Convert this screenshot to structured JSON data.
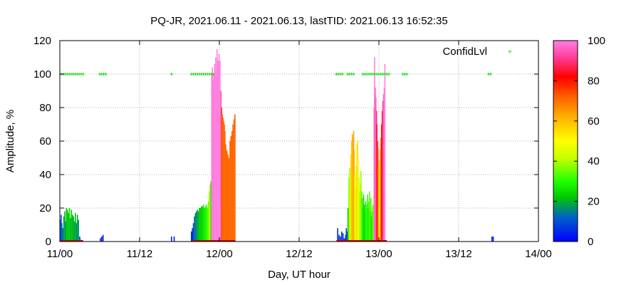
{
  "chart_data": {
    "type": "bar",
    "title": "PQ-JR, 2021.06.11 - 2021.06.13, lastTID: 2021.06.13 16:52:35",
    "xlabel": "Day, UT hour",
    "ylabel": "Amplitude, %",
    "xlim": [
      0,
      72
    ],
    "ylim": [
      0,
      120
    ],
    "x_ticks": [
      {
        "value": 0,
        "label": "11/00"
      },
      {
        "value": 12,
        "label": "11/12"
      },
      {
        "value": 24,
        "label": "12/00"
      },
      {
        "value": 36,
        "label": "12/12"
      },
      {
        "value": 48,
        "label": "13/00"
      },
      {
        "value": 60,
        "label": "13/12"
      },
      {
        "value": 72,
        "label": "14/00"
      }
    ],
    "y_ticks": [
      0,
      20,
      40,
      60,
      80,
      100,
      120
    ],
    "grid": true,
    "legend": {
      "label": "ConfidLvl",
      "placement": "top-right",
      "color": "#00dd00"
    },
    "colorbar": {
      "min": 0,
      "max": 100,
      "ticks": [
        0,
        20,
        40,
        60,
        80,
        100
      ]
    },
    "bar_series": {
      "name": "Amplitude",
      "bars": [
        [
          0.1,
          13,
          15
        ],
        [
          0.2,
          16,
          10
        ],
        [
          0.3,
          11,
          12
        ],
        [
          0.45,
          8,
          14
        ],
        [
          0.6,
          15,
          18
        ],
        [
          0.75,
          18,
          20
        ],
        [
          0.85,
          12,
          16
        ],
        [
          1.0,
          20,
          22
        ],
        [
          1.15,
          19,
          24
        ],
        [
          1.3,
          17,
          20
        ],
        [
          1.45,
          20,
          25
        ],
        [
          1.6,
          14,
          18
        ],
        [
          1.75,
          19,
          23
        ],
        [
          1.9,
          16,
          22
        ],
        [
          2.05,
          15,
          19
        ],
        [
          2.2,
          12,
          17
        ],
        [
          2.35,
          17,
          21
        ],
        [
          2.5,
          11,
          15
        ],
        [
          2.65,
          16,
          20
        ],
        [
          2.8,
          13,
          17
        ],
        [
          3.0,
          3,
          6
        ],
        [
          3.2,
          1,
          3
        ],
        [
          6.1,
          2,
          5
        ],
        [
          6.3,
          3,
          4
        ],
        [
          6.5,
          4,
          3
        ],
        [
          16.8,
          3,
          4
        ],
        [
          17.2,
          3,
          3
        ],
        [
          19.8,
          6,
          5
        ],
        [
          19.95,
          8,
          6
        ],
        [
          20.1,
          11,
          10
        ],
        [
          20.25,
          15,
          12
        ],
        [
          20.4,
          17,
          15
        ],
        [
          20.55,
          18,
          17
        ],
        [
          20.7,
          19,
          19
        ],
        [
          20.85,
          18,
          20
        ],
        [
          21.0,
          20,
          22
        ],
        [
          21.15,
          20,
          24
        ],
        [
          21.3,
          21,
          23
        ],
        [
          21.45,
          21,
          25
        ],
        [
          21.6,
          22,
          26
        ],
        [
          21.75,
          20,
          27
        ],
        [
          21.9,
          21,
          28
        ],
        [
          22.05,
          22,
          30
        ],
        [
          22.2,
          20,
          32
        ],
        [
          22.35,
          24,
          35
        ],
        [
          22.5,
          30,
          38
        ],
        [
          22.6,
          34,
          40
        ],
        [
          22.75,
          36,
          24
        ],
        [
          22.85,
          100,
          100
        ],
        [
          22.95,
          104,
          100
        ],
        [
          23.05,
          96,
          100
        ],
        [
          23.15,
          100,
          99
        ],
        [
          23.3,
          106,
          100
        ],
        [
          23.45,
          110,
          100
        ],
        [
          23.55,
          102,
          100
        ],
        [
          23.65,
          115,
          100
        ],
        [
          23.8,
          108,
          100
        ],
        [
          23.95,
          112,
          100
        ],
        [
          24.1,
          108,
          100
        ],
        [
          24.25,
          90,
          95
        ],
        [
          24.35,
          80,
          75
        ],
        [
          24.45,
          76,
          70
        ],
        [
          24.55,
          74,
          72
        ],
        [
          24.65,
          72,
          70
        ],
        [
          24.75,
          70,
          72
        ],
        [
          24.85,
          66,
          70
        ],
        [
          24.95,
          58,
          72
        ],
        [
          25.05,
          55,
          70
        ],
        [
          25.15,
          54,
          72
        ],
        [
          25.3,
          52,
          70
        ],
        [
          25.45,
          50,
          72
        ],
        [
          25.6,
          60,
          70
        ],
        [
          25.75,
          63,
          72
        ],
        [
          25.9,
          66,
          70
        ],
        [
          26.05,
          70,
          72
        ],
        [
          26.2,
          73,
          70
        ],
        [
          26.35,
          76,
          72
        ],
        [
          41.8,
          8,
          6
        ],
        [
          42.0,
          4,
          5
        ],
        [
          42.2,
          3,
          4
        ],
        [
          42.4,
          6,
          6
        ],
        [
          42.6,
          5,
          5
        ],
        [
          42.8,
          2,
          4
        ],
        [
          43.0,
          4,
          6
        ],
        [
          43.1,
          8,
          8
        ],
        [
          43.2,
          6,
          10
        ],
        [
          43.35,
          20,
          22
        ],
        [
          43.5,
          38,
          36
        ],
        [
          43.6,
          44,
          40
        ],
        [
          43.7,
          30,
          45
        ],
        [
          43.8,
          52,
          55
        ],
        [
          43.9,
          60,
          58
        ],
        [
          44.0,
          64,
          62
        ],
        [
          44.1,
          62,
          60
        ],
        [
          44.2,
          66,
          64
        ],
        [
          44.3,
          55,
          60
        ],
        [
          44.4,
          40,
          50
        ],
        [
          44.5,
          32,
          45
        ],
        [
          44.6,
          45,
          40
        ],
        [
          44.7,
          58,
          52
        ],
        [
          44.8,
          60,
          55
        ],
        [
          44.9,
          50,
          50
        ],
        [
          45.0,
          38,
          45
        ],
        [
          45.1,
          30,
          40
        ],
        [
          45.2,
          35,
          42
        ],
        [
          45.3,
          42,
          38
        ],
        [
          45.4,
          30,
          34
        ],
        [
          45.5,
          26,
          30
        ],
        [
          45.6,
          20,
          28
        ],
        [
          45.7,
          28,
          25
        ],
        [
          45.8,
          22,
          24
        ],
        [
          45.9,
          18,
          26
        ],
        [
          46.0,
          24,
          28
        ],
        [
          46.1,
          20,
          30
        ],
        [
          46.2,
          22,
          32
        ],
        [
          46.3,
          28,
          30
        ],
        [
          46.4,
          20,
          26
        ],
        [
          46.5,
          24,
          30
        ],
        [
          46.6,
          30,
          34
        ],
        [
          46.7,
          18,
          28
        ],
        [
          46.8,
          26,
          32
        ],
        [
          46.9,
          15,
          24
        ],
        [
          47.0,
          18,
          30
        ],
        [
          47.1,
          22,
          34
        ],
        [
          47.3,
          80,
          90
        ],
        [
          47.35,
          110,
          100
        ],
        [
          47.4,
          88,
          95
        ],
        [
          47.5,
          92,
          100
        ],
        [
          47.55,
          86,
          96
        ],
        [
          47.65,
          78,
          90
        ],
        [
          47.7,
          70,
          85
        ],
        [
          47.78,
          60,
          80
        ],
        [
          47.85,
          56,
          75
        ],
        [
          47.95,
          48,
          65
        ],
        [
          48.05,
          40,
          55
        ],
        [
          48.1,
          28,
          45
        ],
        [
          48.1,
          45,
          50
        ],
        [
          48.2,
          55,
          60
        ],
        [
          48.3,
          62,
          70
        ],
        [
          48.4,
          70,
          80
        ],
        [
          48.5,
          78,
          85
        ],
        [
          48.6,
          84,
          90
        ],
        [
          48.7,
          88,
          95
        ],
        [
          48.8,
          92,
          100
        ],
        [
          48.9,
          106,
          100
        ],
        [
          65.0,
          3,
          4
        ],
        [
          65.2,
          3,
          3
        ]
      ]
    },
    "confid_series": {
      "name": "ConfidLvl",
      "points": [
        [
          0.2,
          100
        ],
        [
          0.5,
          100
        ],
        [
          0.8,
          100
        ],
        [
          1.1,
          100
        ],
        [
          1.4,
          100
        ],
        [
          1.7,
          100
        ],
        [
          2.0,
          100
        ],
        [
          2.3,
          100
        ],
        [
          2.6,
          100
        ],
        [
          2.9,
          100
        ],
        [
          3.2,
          100
        ],
        [
          3.5,
          100
        ],
        [
          6.0,
          100
        ],
        [
          6.3,
          100
        ],
        [
          6.6,
          100
        ],
        [
          6.9,
          100
        ],
        [
          16.8,
          100
        ],
        [
          19.8,
          100
        ],
        [
          20.1,
          100
        ],
        [
          20.4,
          100
        ],
        [
          20.7,
          100
        ],
        [
          21.0,
          100
        ],
        [
          21.3,
          100
        ],
        [
          21.6,
          100
        ],
        [
          21.9,
          100
        ],
        [
          22.2,
          100
        ],
        [
          22.5,
          100
        ],
        [
          22.8,
          100
        ],
        [
          23.1,
          100
        ],
        [
          41.6,
          100
        ],
        [
          41.9,
          100
        ],
        [
          42.2,
          100
        ],
        [
          42.5,
          100
        ],
        [
          43.3,
          100
        ],
        [
          43.6,
          100
        ],
        [
          43.9,
          100
        ],
        [
          44.2,
          100
        ],
        [
          45.6,
          100
        ],
        [
          45.9,
          100
        ],
        [
          46.2,
          100
        ],
        [
          46.5,
          100
        ],
        [
          46.8,
          100
        ],
        [
          47.1,
          100
        ],
        [
          47.4,
          100
        ],
        [
          47.7,
          100
        ],
        [
          48.0,
          100
        ],
        [
          48.3,
          100
        ],
        [
          48.6,
          100
        ],
        [
          48.9,
          100
        ],
        [
          49.2,
          100
        ],
        [
          49.5,
          100
        ],
        [
          51.6,
          100
        ],
        [
          51.9,
          100
        ],
        [
          52.2,
          100
        ],
        [
          64.5,
          100
        ],
        [
          64.8,
          100
        ]
      ]
    }
  }
}
